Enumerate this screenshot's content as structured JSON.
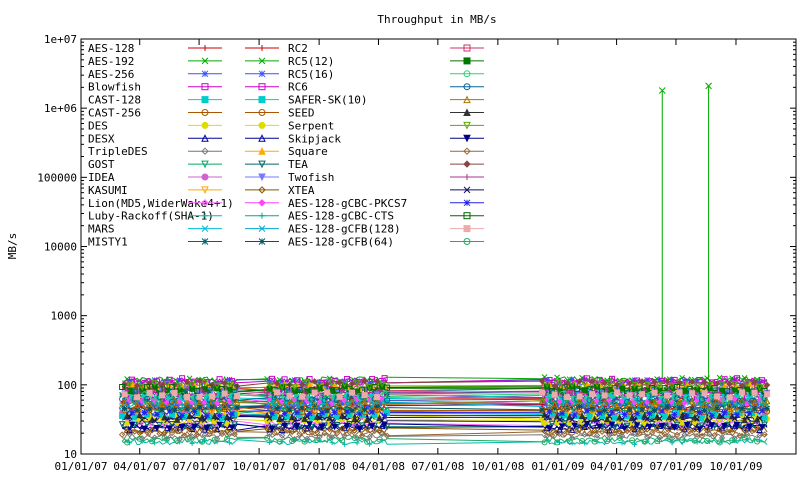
{
  "chart_data": {
    "type": "line",
    "title": "Throughput in MB/s",
    "ylabel": "MB/s",
    "xlabel": "",
    "y_scale": "log",
    "ylim": [
      10,
      10000000
    ],
    "xlim": [
      "2007-01-01",
      "2010-01-01"
    ],
    "y_ticks": [
      "10",
      "100",
      "1000",
      "10000",
      "100000",
      "1e+06",
      "1e+07"
    ],
    "x_ticks": [
      "01/01/07",
      "04/01/07",
      "07/01/07",
      "10/01/07",
      "01/01/08",
      "04/01/08",
      "07/01/08",
      "10/01/08",
      "01/01/09",
      "04/01/09",
      "07/01/09",
      "10/01/09"
    ],
    "grid": false,
    "legend_position": "top-left, three columns",
    "series": [
      {
        "name": "AES-128",
        "color": "#cc0000",
        "marker": "plus",
        "level": 60
      },
      {
        "name": "AES-192",
        "color": "#00aa00",
        "marker": "cross",
        "level": 55
      },
      {
        "name": "AES-256",
        "color": "#3355ff",
        "marker": "star",
        "level": 50
      },
      {
        "name": "Blowfish",
        "color": "#cc00cc",
        "marker": "square",
        "level": 70
      },
      {
        "name": "CAST-128",
        "color": "#00cccc",
        "marker": "filled-square",
        "level": 65
      },
      {
        "name": "CAST-256",
        "color": "#aa5500",
        "marker": "circle",
        "level": 45
      },
      {
        "name": "DES",
        "color": "#dddd00",
        "marker": "filled-circle",
        "level": 35
      },
      {
        "name": "DESX",
        "color": "#000099",
        "marker": "triangle",
        "level": 32
      },
      {
        "name": "TripleDES",
        "color": "#777777",
        "marker": "diamond",
        "level": 18
      },
      {
        "name": "GOST",
        "color": "#00aa66",
        "marker": "triangle-down",
        "level": 40
      },
      {
        "name": "IDEA",
        "color": "#cc66cc",
        "marker": "filled-circle",
        "level": 38
      },
      {
        "name": "KASUMI",
        "color": "#ffaa00",
        "marker": "triangle-down",
        "level": 42
      },
      {
        "name": "Lion(MD5,WiderWake4+1)",
        "color": "#ff66ff",
        "marker": "diamond",
        "level": 28
      },
      {
        "name": "Luby-Rackoff(SHA-1)",
        "color": "#00bbaa",
        "marker": "plus",
        "level": 15
      },
      {
        "name": "MARS",
        "color": "#00bbdd",
        "marker": "cross",
        "level": 85
      },
      {
        "name": "MISTY1",
        "color": "#006666",
        "marker": "star",
        "level": 75
      },
      {
        "name": "RC2",
        "color": "#cc0000",
        "marker": "plus",
        "level": 48
      },
      {
        "name": "RC5(12)",
        "color": "#00aa00",
        "marker": "cross",
        "level": 120,
        "spikes": [
          1800000,
          2100000
        ]
      },
      {
        "name": "RC5(16)",
        "color": "#3355ff",
        "marker": "star",
        "level": 110
      },
      {
        "name": "RC6",
        "color": "#cc00cc",
        "marker": "square",
        "level": 115
      },
      {
        "name": "SAFER-SK(10)",
        "color": "#00cccc",
        "marker": "filled-square",
        "level": 36
      },
      {
        "name": "SEED",
        "color": "#aa5500",
        "marker": "circle",
        "level": 44
      },
      {
        "name": "Serpent",
        "color": "#dddd00",
        "marker": "filled-circle",
        "level": 30
      },
      {
        "name": "Skipjack",
        "color": "#000099",
        "marker": "triangle",
        "level": 24
      },
      {
        "name": "Square",
        "color": "#ffaa00",
        "marker": "filled-triangle",
        "level": 95
      },
      {
        "name": "TEA",
        "color": "#006666",
        "marker": "triangle-down",
        "level": 26
      },
      {
        "name": "Twofish",
        "color": "#7777ff",
        "marker": "filled-triangle-down",
        "level": 80
      },
      {
        "name": "XTEA",
        "color": "#885500",
        "marker": "diamond",
        "level": 22
      },
      {
        "name": "AES-128-gCBC-PKCS7",
        "color": "#ff44ff",
        "marker": "filled-diamond",
        "level": 58
      },
      {
        "name": "AES-128-gCBC-CTS",
        "color": "#00aa88",
        "marker": "plus",
        "level": 56
      },
      {
        "name": "AES-128-gCFB(128)",
        "color": "#00aacc",
        "marker": "cross",
        "level": 52
      },
      {
        "name": "AES-128-gCFB(64)",
        "color": "#005566",
        "marker": "star",
        "level": 46
      },
      {
        "name": "",
        "color": "#cc3366",
        "marker": "square",
        "level": 90
      },
      {
        "name": "",
        "color": "#007700",
        "marker": "filled-square",
        "level": 88
      },
      {
        "name": "",
        "color": "#33cc77",
        "marker": "circle",
        "level": 68
      },
      {
        "name": "",
        "color": "#006699",
        "marker": "circle",
        "level": 62
      },
      {
        "name": "",
        "color": "#aa7700",
        "marker": "triangle",
        "level": 54
      },
      {
        "name": "",
        "color": "#333333",
        "marker": "filled-triangle",
        "level": 34
      },
      {
        "name": "",
        "color": "#55aa00",
        "marker": "triangle-down",
        "level": 100
      },
      {
        "name": "",
        "color": "#000088",
        "marker": "filled-triangle-down",
        "level": 25
      },
      {
        "name": "",
        "color": "#996633",
        "marker": "diamond",
        "level": 20
      },
      {
        "name": "",
        "color": "#884444",
        "marker": "filled-diamond",
        "level": 105
      },
      {
        "name": "",
        "color": "#aa3388",
        "marker": "plus",
        "level": 78
      },
      {
        "name": "",
        "color": "#111166",
        "marker": "cross",
        "level": 33
      },
      {
        "name": "",
        "color": "#2222ee",
        "marker": "star",
        "level": 39
      },
      {
        "name": "",
        "color": "#006600",
        "marker": "square",
        "level": 86
      },
      {
        "name": "",
        "color": "#eeaaaa",
        "marker": "filled-square",
        "level": 72
      },
      {
        "name": "",
        "color": "#22aa66",
        "marker": "circle",
        "level": 16
      }
    ],
    "data_gaps": [
      [
        "2007-09-01",
        "2007-10-10"
      ],
      [
        "2008-04-15",
        "2008-12-05"
      ]
    ]
  }
}
